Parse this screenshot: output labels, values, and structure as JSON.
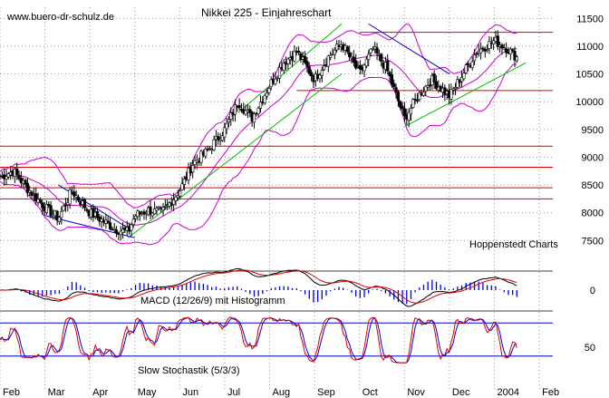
{
  "chart_data": {
    "type": "candlestick",
    "title": "Nikkei 225 - Einjahreschart",
    "watermark": "www.buero-dr-schulz.de",
    "source_label": "Hoppenstedt Charts",
    "x_tick_labels": [
      "Feb",
      "Mar",
      "Apr",
      "May",
      "Jun",
      "Jul",
      "Aug",
      "Sep",
      "Oct",
      "Nov",
      "Dec",
      "2004",
      "Feb"
    ],
    "x_range_months": [
      0,
      12.3
    ],
    "price_axis": {
      "ylim": [
        7000,
        11700
      ],
      "ticks": [
        7500,
        8000,
        8500,
        9000,
        9500,
        10000,
        10500,
        11000,
        11500
      ]
    },
    "price_path": {
      "months": [
        0.0,
        0.3,
        0.6,
        1.0,
        1.3,
        1.6,
        2.0,
        2.3,
        2.6,
        2.85,
        3.0,
        3.3,
        3.6,
        4.0,
        4.3,
        4.6,
        5.0,
        5.3,
        5.6,
        6.0,
        6.3,
        6.6,
        7.0,
        7.3,
        7.6,
        8.0,
        8.3,
        8.6,
        9.0,
        9.3,
        9.6,
        10.0,
        10.3,
        10.6,
        11.0,
        11.3,
        11.5
      ],
      "close": [
        8650,
        8750,
        8450,
        8100,
        7900,
        8400,
        8000,
        7850,
        7700,
        7650,
        7950,
        8050,
        8000,
        8400,
        8900,
        9100,
        9500,
        10000,
        9700,
        10300,
        10700,
        10900,
        10400,
        10800,
        11050,
        10500,
        10950,
        10600,
        9700,
        10100,
        10400,
        10100,
        10500,
        10900,
        11100,
        10950,
        10800
      ]
    },
    "horizontal_lines": {
      "red": [
        11250,
        10200,
        9200,
        8820,
        8450,
        8250
      ]
    },
    "trendlines": [
      {
        "color": "green",
        "from": [
          2.85,
          7550
        ],
        "to": [
          7.6,
          10500
        ]
      },
      {
        "color": "green",
        "from": [
          5.3,
          9800
        ],
        "to": [
          7.6,
          11400
        ]
      },
      {
        "color": "green",
        "from": [
          9.0,
          9550
        ],
        "to": [
          11.7,
          10700
        ]
      },
      {
        "color": "blue",
        "from": [
          1.0,
          7950
        ],
        "to": [
          3.0,
          7550
        ]
      },
      {
        "color": "blue",
        "from": [
          1.3,
          8500
        ],
        "to": [
          2.9,
          7700
        ]
      },
      {
        "color": "blue",
        "from": [
          8.2,
          11400
        ],
        "to": [
          10.0,
          10500
        ]
      }
    ],
    "macd": {
      "label": "MACD (12/26/9) mit Histogramm",
      "tick": "0"
    },
    "stochastic": {
      "label": "Slow Stochastik (5/3/3)",
      "tick": "50",
      "bounds": [
        20,
        80
      ]
    }
  }
}
